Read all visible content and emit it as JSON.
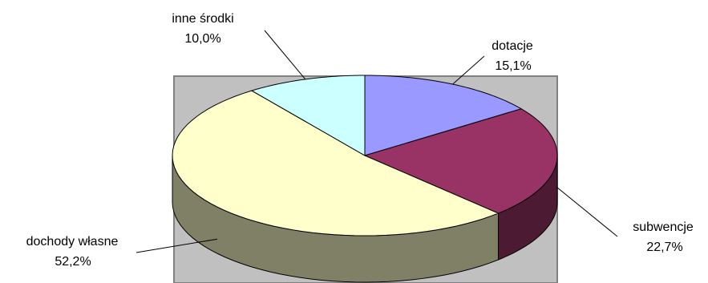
{
  "chart_data": {
    "type": "pie",
    "three_d": true,
    "plot_area_background": "#c0c0c0",
    "slices": [
      {
        "label": "dotacje",
        "value": 15.1,
        "display": "15,1%",
        "top_color": "#9999ff",
        "side_color": "#5c5c99"
      },
      {
        "label": "subwencje",
        "value": 22.7,
        "display": "22,7%",
        "top_color": "#993366",
        "side_color": "#4d1a33"
      },
      {
        "label": "dochody własne",
        "value": 52.2,
        "display": "52,2%",
        "top_color": "#ffffcc",
        "side_color": "#808066"
      },
      {
        "label": "inne środki",
        "value": 10.0,
        "display": "10,0%",
        "top_color": "#ccffff",
        "side_color": "#668080"
      }
    ]
  }
}
